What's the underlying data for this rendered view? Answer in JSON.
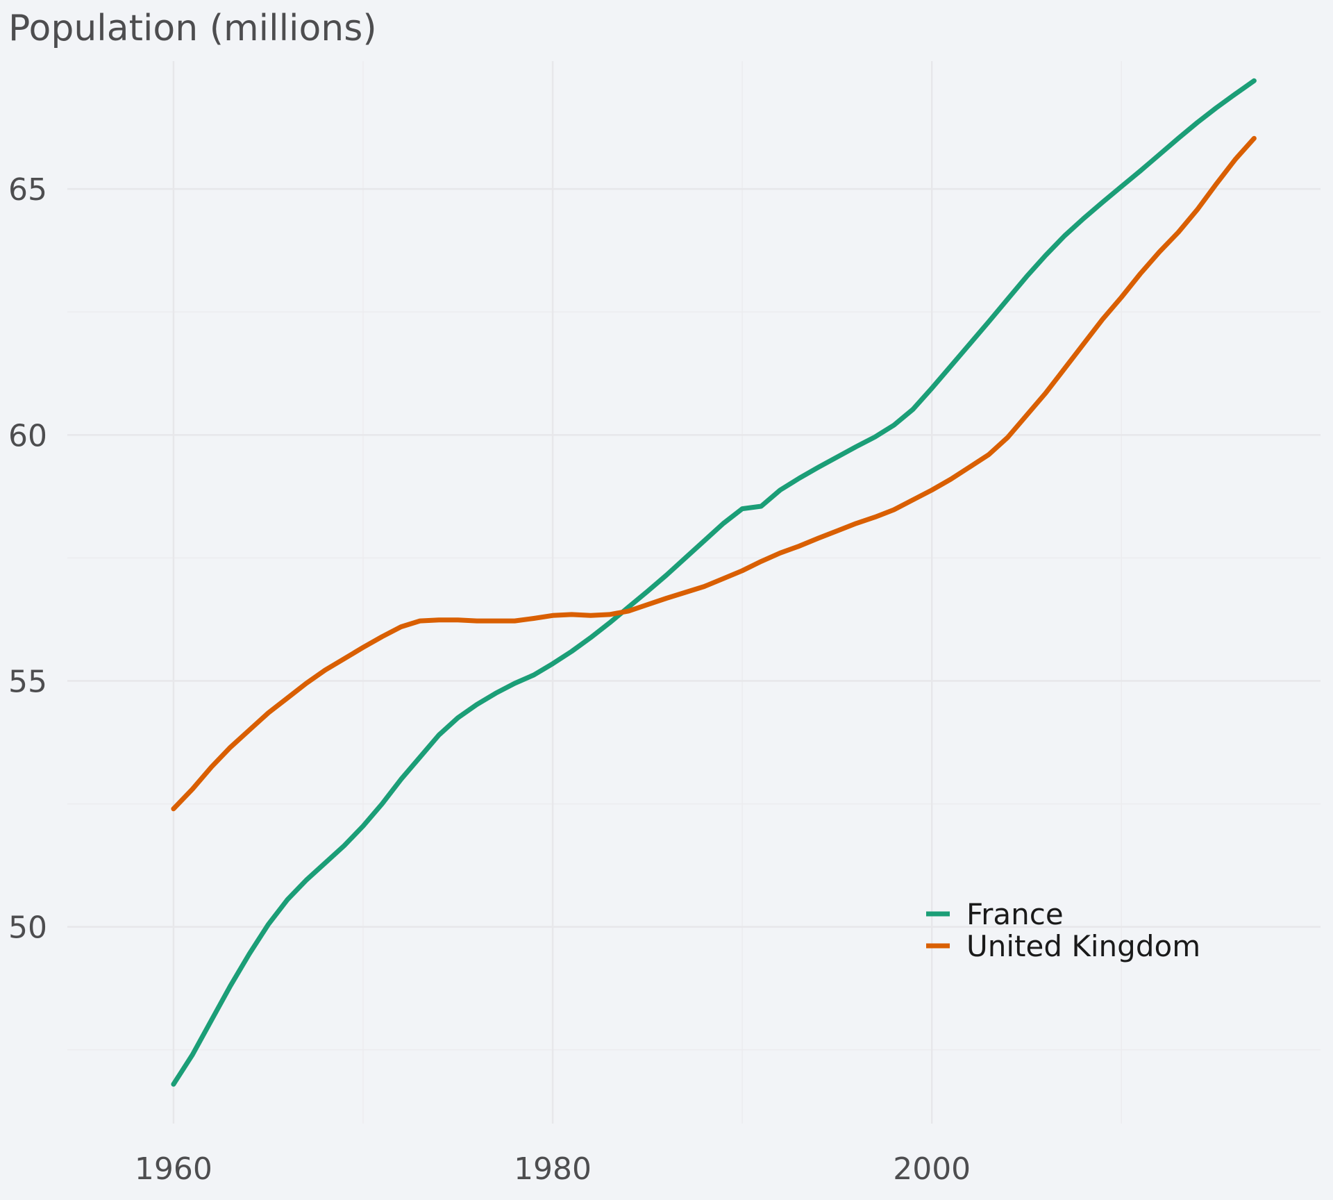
{
  "chart_data": {
    "type": "line",
    "title": "Population (millions)",
    "xlabel": "",
    "ylabel": "",
    "xlim": [
      1954.4,
      2020.5
    ],
    "ylim": [
      46.0,
      67.6
    ],
    "x_ticks": [
      1960,
      1980,
      2000
    ],
    "x_minor_ticks": [
      1970,
      1990,
      2010
    ],
    "y_ticks": [
      50,
      55,
      60,
      65
    ],
    "y_minor_ticks": [
      47.5,
      52.5,
      57.5,
      62.5
    ],
    "grid": true,
    "legend_position": "bottom-right",
    "x": [
      1960,
      1961,
      1962,
      1963,
      1964,
      1965,
      1966,
      1967,
      1968,
      1969,
      1970,
      1971,
      1972,
      1973,
      1974,
      1975,
      1976,
      1977,
      1978,
      1979,
      1980,
      1981,
      1982,
      1983,
      1984,
      1985,
      1986,
      1987,
      1988,
      1989,
      1990,
      1991,
      1992,
      1993,
      1994,
      1995,
      1996,
      1997,
      1998,
      1999,
      2000,
      2001,
      2002,
      2003,
      2004,
      2005,
      2006,
      2007,
      2008,
      2009,
      2010,
      2011,
      2012,
      2013,
      2014,
      2015,
      2016,
      2017
    ],
    "series": [
      {
        "name": "France",
        "color": "#1b9e77",
        "values": [
          46.8,
          47.4,
          48.1,
          48.8,
          49.45,
          50.05,
          50.55,
          50.95,
          51.3,
          51.65,
          52.05,
          52.5,
          53.0,
          53.45,
          53.9,
          54.25,
          54.52,
          54.75,
          54.95,
          55.12,
          55.35,
          55.6,
          55.88,
          56.18,
          56.5,
          56.82,
          57.15,
          57.5,
          57.85,
          58.2,
          58.5,
          58.55,
          58.88,
          59.12,
          59.34,
          59.55,
          59.76,
          59.96,
          60.2,
          60.52,
          60.95,
          61.4,
          61.85,
          62.3,
          62.76,
          63.22,
          63.65,
          64.05,
          64.4,
          64.73,
          65.05,
          65.37,
          65.7,
          66.03,
          66.35,
          66.65,
          66.93,
          67.2
        ]
      },
      {
        "name": "United Kingdom",
        "color": "#d95f02",
        "values": [
          52.4,
          52.8,
          53.25,
          53.65,
          54.0,
          54.35,
          54.65,
          54.95,
          55.22,
          55.45,
          55.68,
          55.9,
          56.1,
          56.22,
          56.24,
          56.24,
          56.22,
          56.22,
          56.22,
          56.27,
          56.33,
          56.35,
          56.33,
          56.35,
          56.42,
          56.55,
          56.68,
          56.8,
          56.92,
          57.08,
          57.24,
          57.43,
          57.6,
          57.74,
          57.9,
          58.05,
          58.2,
          58.33,
          58.48,
          58.68,
          58.88,
          59.1,
          59.35,
          59.6,
          59.95,
          60.4,
          60.85,
          61.35,
          61.85,
          62.35,
          62.8,
          63.28,
          63.72,
          64.12,
          64.58,
          65.1,
          65.6,
          66.03
        ]
      }
    ]
  }
}
